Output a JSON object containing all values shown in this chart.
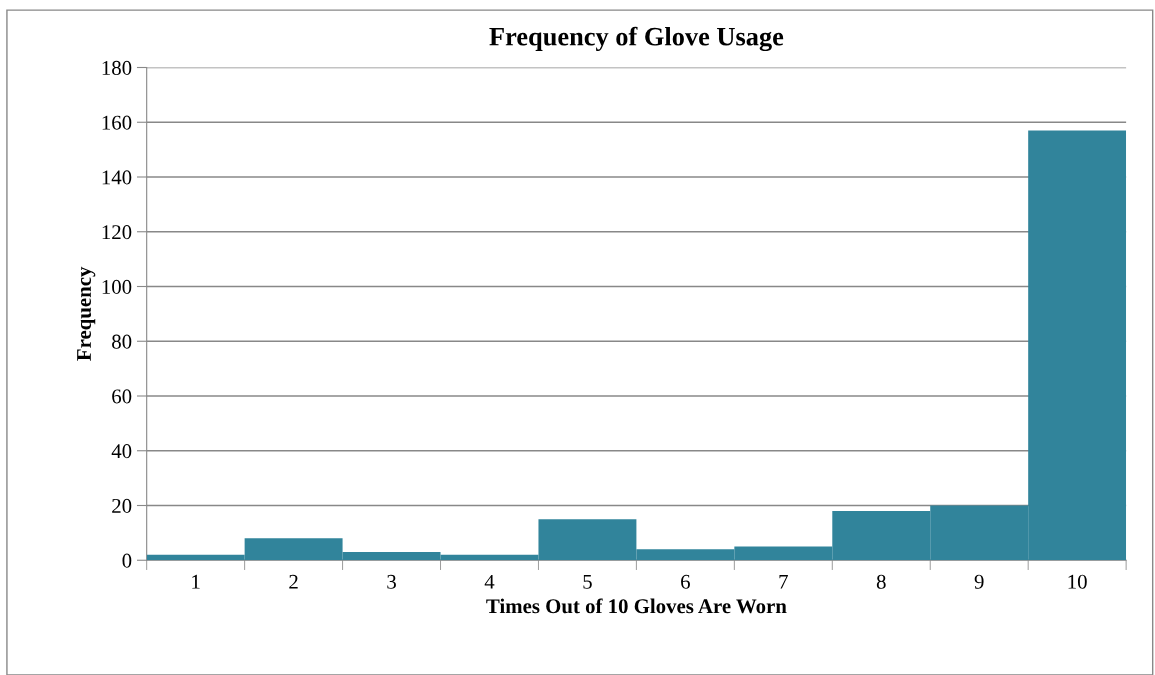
{
  "chart_data": {
    "type": "bar",
    "title": "Frequency of Glove Usage",
    "xlabel": "Times Out of 10 Gloves Are Worn",
    "ylabel": "Frequency",
    "categories": [
      "1",
      "2",
      "3",
      "4",
      "5",
      "6",
      "7",
      "8",
      "9",
      "10"
    ],
    "values": [
      2,
      8,
      3,
      2,
      15,
      4,
      5,
      18,
      20,
      157
    ],
    "color": "#31849b",
    "ylim": [
      0,
      180
    ],
    "yticks": [
      0,
      20,
      40,
      60,
      80,
      100,
      120,
      140,
      160,
      180
    ],
    "grid": "y",
    "legend": false
  }
}
